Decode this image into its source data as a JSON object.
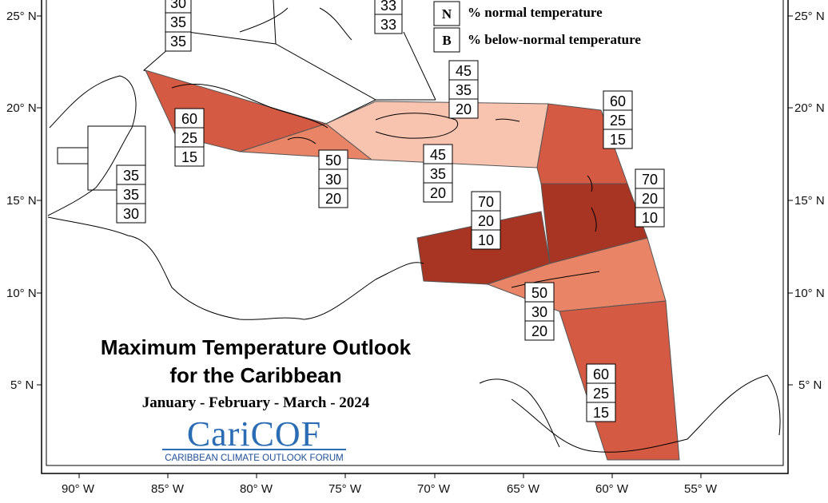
{
  "title": {
    "line1": "Maximum Temperature Outlook",
    "line2": "for the Caribbean",
    "period": "January - February - March - 2024"
  },
  "logo": {
    "name": "CariCOF",
    "tagline": "CARIBBEAN CLIMATE OUTLOOK FORUM"
  },
  "legend": [
    {
      "letter": "N",
      "text": "% normal temperature"
    },
    {
      "letter": "B",
      "text": "% below-normal temperature"
    }
  ],
  "axes": {
    "lat_labels": [
      "25° N",
      "20° N",
      "15° N",
      "10° N",
      "5° N"
    ],
    "lon_labels": [
      "90° W",
      "85° W",
      "80° W",
      "75° W",
      "70° W",
      "65° W",
      "60° W",
      "55° W"
    ]
  },
  "colors": {
    "light": "#f8c4b0",
    "medium": "#e98467",
    "strong": "#d45a43",
    "very_strong": "#a83423",
    "logo_blue": "#2a6db5"
  },
  "zones": [
    {
      "name": "north-top-left",
      "values": [
        "30",
        "35",
        "35"
      ]
    },
    {
      "name": "bahamas",
      "values": [
        "33",
        "33"
      ]
    },
    {
      "name": "cuba",
      "values": [
        "60",
        "25",
        "15"
      ]
    },
    {
      "name": "belize",
      "values": [
        "35",
        "35",
        "30"
      ]
    },
    {
      "name": "jamaica",
      "values": [
        "50",
        "30",
        "20"
      ]
    },
    {
      "name": "hispaniola-north",
      "values": [
        "45",
        "35",
        "20"
      ]
    },
    {
      "name": "hispaniola-south",
      "values": [
        "45",
        "35",
        "20"
      ]
    },
    {
      "name": "leeward-islands",
      "values": [
        "60",
        "25",
        "15"
      ]
    },
    {
      "name": "windward-islands",
      "values": [
        "70",
        "20",
        "10"
      ]
    },
    {
      "name": "abc-islands",
      "values": [
        "70",
        "20",
        "10"
      ]
    },
    {
      "name": "trinidad",
      "values": [
        "50",
        "30",
        "20"
      ]
    },
    {
      "name": "guianas",
      "values": [
        "60",
        "25",
        "15"
      ]
    }
  ]
}
